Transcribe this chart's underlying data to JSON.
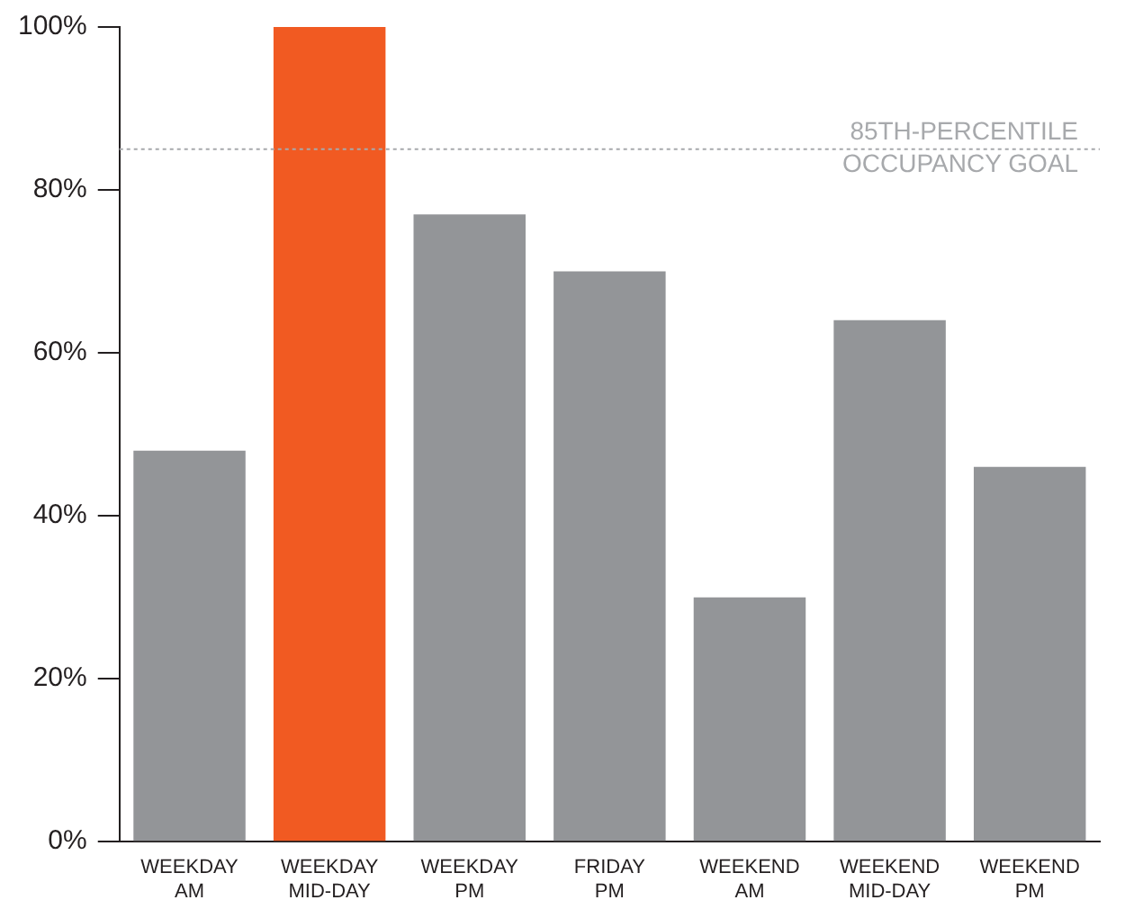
{
  "chart_data": {
    "type": "bar",
    "categories": [
      "WEEKDAY AM",
      "WEEKDAY MID-DAY",
      "WEEKDAY PM",
      "FRIDAY PM",
      "WEEKEND AM",
      "WEEKEND MID-DAY",
      "WEEKEND PM"
    ],
    "values": [
      48,
      100,
      77,
      70,
      30,
      64,
      46
    ],
    "colors": [
      "#939598",
      "#f15a22",
      "#939598",
      "#939598",
      "#939598",
      "#939598",
      "#939598"
    ],
    "ylim": [
      0,
      100
    ],
    "yticks": [
      {
        "value": 0,
        "label": "0%"
      },
      {
        "value": 20,
        "label": "20%"
      },
      {
        "value": 40,
        "label": "40%"
      },
      {
        "value": 60,
        "label": "60%"
      },
      {
        "value": 80,
        "label": "80%"
      },
      {
        "value": 100,
        "label": "100%"
      }
    ],
    "grid": false,
    "ref_lines": [
      {
        "axis": "y",
        "value": 85,
        "label": "85TH-PERCENTILE OCCUPANCY GOAL",
        "color": "#a7a9ac",
        "line_style": "dotted"
      }
    ]
  }
}
